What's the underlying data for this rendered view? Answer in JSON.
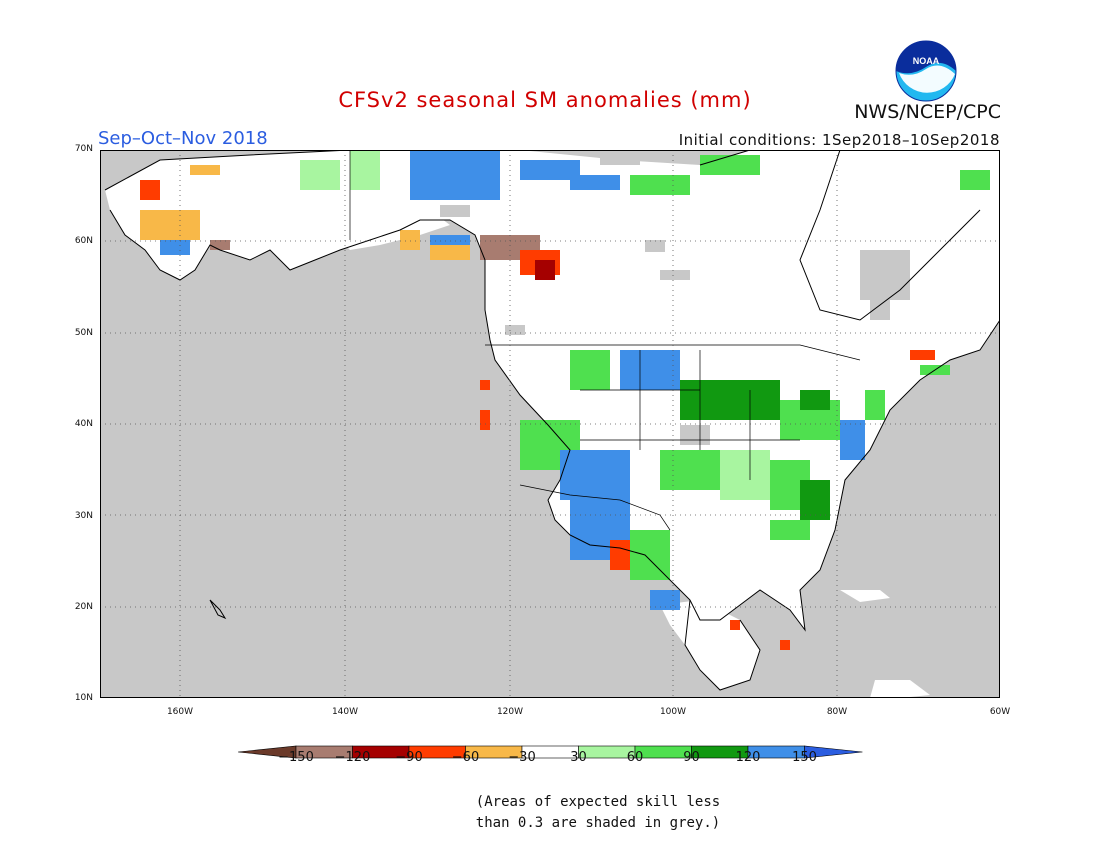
{
  "title": "CFSv2 seasonal SM anomalies (mm)",
  "period": "Sep–Oct–Nov 2018",
  "initial_conditions": "Initial conditions: 1Sep2018–10Sep2018",
  "agency": "NWS/NCEP/CPC",
  "logo_text": "NOAA",
  "lat_labels": [
    "70N",
    "60N",
    "50N",
    "40N",
    "30N",
    "20N",
    "10N"
  ],
  "lon_labels": [
    "160W",
    "140W",
    "120W",
    "100W",
    "80W",
    "60W"
  ],
  "colorbar": {
    "labels": [
      "−150",
      "−120",
      "−90",
      "−60",
      "−30",
      "30",
      "60",
      "90",
      "120",
      "150"
    ],
    "colors": [
      "#6b3a2a",
      "#a87c70",
      "#a50000",
      "#ff3c00",
      "#f8b848",
      "#ffffff",
      "#a8f5a0",
      "#4fe04f",
      "#119911",
      "#3f8fe8",
      "#2b5de0"
    ]
  },
  "note_line1": "(Areas of expected skill less",
  "note_line2": "than 0.3 are shaded in grey.)"
}
